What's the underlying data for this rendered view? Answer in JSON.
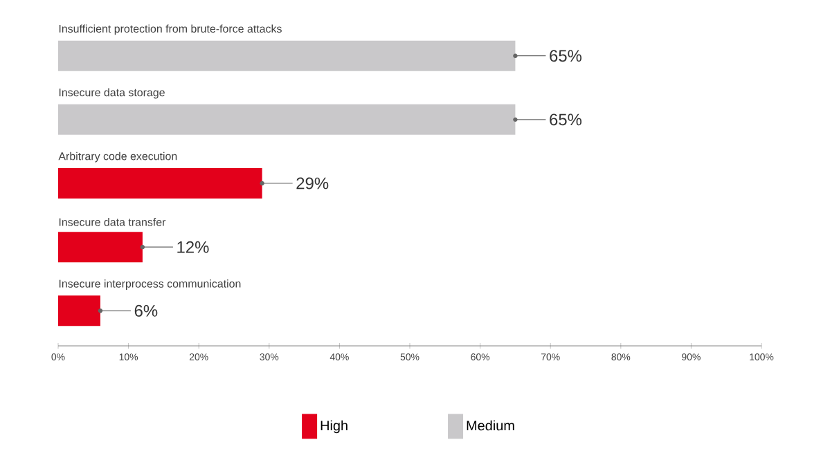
{
  "chart_data": {
    "type": "bar",
    "orientation": "horizontal",
    "categories": [
      "Insufficient protection from brute-force attacks",
      "Insecure data storage",
      "Arbitrary code execution",
      "Insecure data transfer",
      "Insecure interprocess communication"
    ],
    "series": [
      {
        "name": "High",
        "color": "#e3001b",
        "values": [
          null,
          null,
          29,
          12,
          6
        ],
        "value_labels": [
          null,
          null,
          "29%",
          "12%",
          "6%"
        ]
      },
      {
        "name": "Medium",
        "color": "#c9c8ca",
        "values": [
          65,
          65,
          null,
          null,
          null
        ],
        "value_labels": [
          "65%",
          "65%",
          null,
          null,
          null
        ]
      }
    ],
    "xlim": [
      0,
      100
    ],
    "xticks": [
      {
        "value": 0,
        "label": "0%"
      },
      {
        "value": 10,
        "label": "10%"
      },
      {
        "value": 20,
        "label": "20%"
      },
      {
        "value": 30,
        "label": "30%"
      },
      {
        "value": 40,
        "label": "40%"
      },
      {
        "value": 50,
        "label": "50%"
      },
      {
        "value": 60,
        "label": "60%"
      },
      {
        "value": 70,
        "label": "70%"
      },
      {
        "value": 80,
        "label": "80%"
      },
      {
        "value": 90,
        "label": "90%"
      },
      {
        "value": 100,
        "label": "100%"
      }
    ],
    "tick_labels": "x",
    "legend": "bottom"
  }
}
